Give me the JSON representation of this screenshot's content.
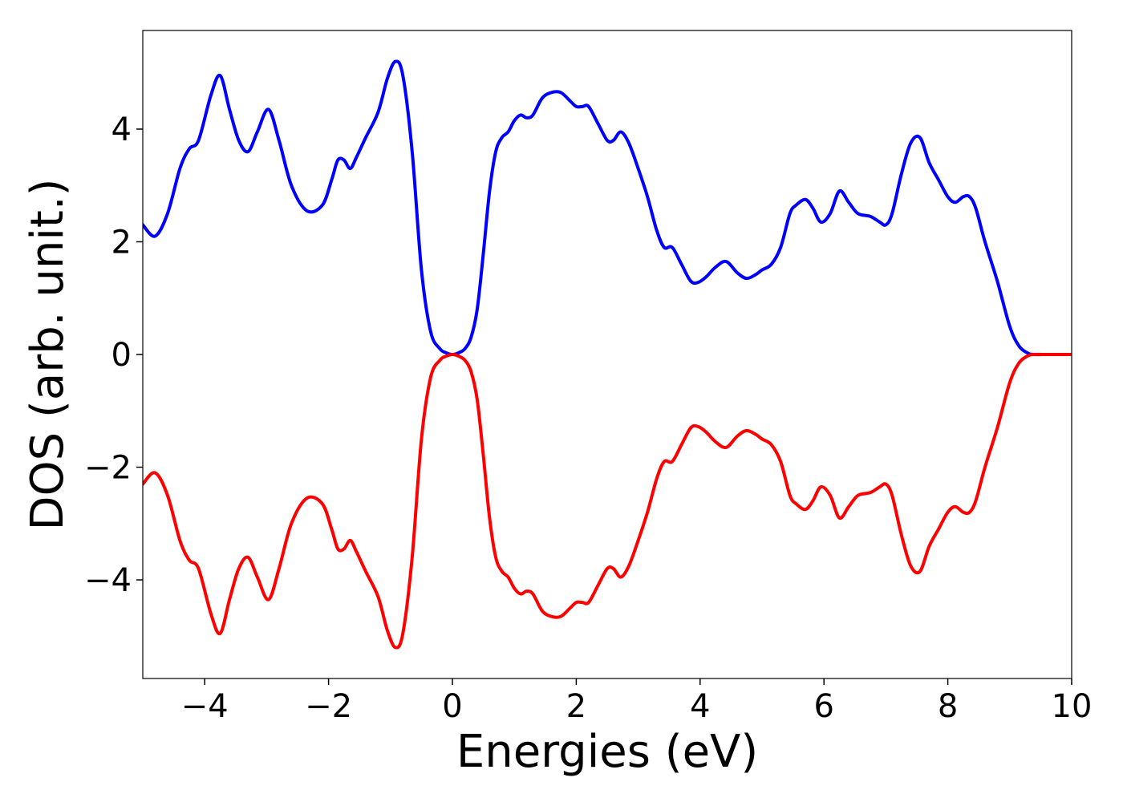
{
  "chart_data": {
    "type": "line",
    "title": "",
    "xlabel": "Energies (eV)",
    "ylabel": "DOS (arb. unit.)",
    "xlim": [
      -5,
      10
    ],
    "ylim": [
      -5.75,
      5.75
    ],
    "xticks": [
      -4,
      -2,
      0,
      2,
      4,
      6,
      8,
      10
    ],
    "xtick_labels": [
      "−4",
      "−2",
      "0",
      "2",
      "4",
      "6",
      "8",
      "10"
    ],
    "yticks": [
      -4,
      -2,
      0,
      2,
      4
    ],
    "ytick_labels": [
      "−4",
      "−2",
      "0",
      "2",
      "4"
    ],
    "grid": false,
    "legend": "none",
    "series": [
      {
        "color": "#0000ff",
        "x": [
          -5,
          -4.8,
          -4.6,
          -4.4,
          -4.25,
          -4.1,
          -3.9,
          -3.75,
          -3.6,
          -3.45,
          -3.3,
          -3.15,
          -2.97,
          -2.8,
          -2.6,
          -2.35,
          -2.1,
          -1.95,
          -1.85,
          -1.75,
          -1.65,
          -1.55,
          -1.4,
          -1.2,
          -1.05,
          -0.92,
          -0.8,
          -0.65,
          -0.5,
          -0.35,
          -0.2,
          -0.1,
          0,
          0.1,
          0.2,
          0.3,
          0.4,
          0.5,
          0.6,
          0.7,
          0.8,
          0.9,
          1.0,
          1.1,
          1.2,
          1.3,
          1.45,
          1.6,
          1.75,
          1.9,
          2.0,
          2.1,
          2.2,
          2.35,
          2.5,
          2.6,
          2.72,
          2.85,
          3.0,
          3.15,
          3.3,
          3.42,
          3.55,
          3.7,
          3.85,
          3.97,
          4.1,
          4.25,
          4.42,
          4.6,
          4.75,
          4.9,
          5.0,
          5.15,
          5.3,
          5.45,
          5.55,
          5.7,
          5.82,
          5.95,
          6.1,
          6.25,
          6.4,
          6.55,
          6.75,
          6.9,
          7.0,
          7.1,
          7.25,
          7.4,
          7.55,
          7.7,
          7.85,
          8.0,
          8.12,
          8.25,
          8.35,
          8.45,
          8.6,
          8.8,
          9.0,
          9.15,
          9.3,
          9.4,
          9.6,
          9.8,
          10
        ],
        "y": [
          2.3,
          2.1,
          2.5,
          3.3,
          3.65,
          3.8,
          4.6,
          4.95,
          4.35,
          3.8,
          3.6,
          3.95,
          4.35,
          3.8,
          3.0,
          2.55,
          2.65,
          3.1,
          3.45,
          3.45,
          3.3,
          3.5,
          3.85,
          4.3,
          4.9,
          5.2,
          4.95,
          3.6,
          1.5,
          0.4,
          0.1,
          0.03,
          0.0,
          0.03,
          0.1,
          0.3,
          0.8,
          1.8,
          2.9,
          3.6,
          3.85,
          3.95,
          4.15,
          4.25,
          4.2,
          4.25,
          4.55,
          4.65,
          4.65,
          4.5,
          4.4,
          4.4,
          4.4,
          4.1,
          3.8,
          3.8,
          3.95,
          3.75,
          3.3,
          2.8,
          2.2,
          1.9,
          1.9,
          1.6,
          1.3,
          1.28,
          1.38,
          1.55,
          1.65,
          1.45,
          1.35,
          1.42,
          1.5,
          1.6,
          1.9,
          2.5,
          2.65,
          2.75,
          2.6,
          2.35,
          2.5,
          2.9,
          2.7,
          2.5,
          2.45,
          2.35,
          2.3,
          2.5,
          3.2,
          3.75,
          3.85,
          3.4,
          3.1,
          2.8,
          2.7,
          2.8,
          2.8,
          2.6,
          2.0,
          1.3,
          0.5,
          0.15,
          0.02,
          0.0,
          0.0,
          0.0,
          0.0
        ]
      },
      {
        "color": "#ff0000",
        "x": [
          -5,
          -4.8,
          -4.6,
          -4.4,
          -4.25,
          -4.1,
          -3.9,
          -3.75,
          -3.6,
          -3.45,
          -3.3,
          -3.15,
          -2.97,
          -2.8,
          -2.6,
          -2.35,
          -2.1,
          -1.95,
          -1.85,
          -1.75,
          -1.65,
          -1.55,
          -1.4,
          -1.2,
          -1.05,
          -0.92,
          -0.8,
          -0.65,
          -0.5,
          -0.35,
          -0.2,
          -0.1,
          0,
          0.1,
          0.2,
          0.3,
          0.4,
          0.5,
          0.6,
          0.7,
          0.8,
          0.9,
          1.0,
          1.1,
          1.2,
          1.3,
          1.45,
          1.6,
          1.75,
          1.9,
          2.0,
          2.1,
          2.2,
          2.35,
          2.5,
          2.6,
          2.72,
          2.85,
          3.0,
          3.15,
          3.3,
          3.42,
          3.55,
          3.7,
          3.85,
          3.97,
          4.1,
          4.25,
          4.42,
          4.6,
          4.75,
          4.9,
          5.0,
          5.15,
          5.3,
          5.45,
          5.55,
          5.7,
          5.82,
          5.95,
          6.1,
          6.25,
          6.4,
          6.55,
          6.75,
          6.9,
          7.0,
          7.1,
          7.25,
          7.4,
          7.55,
          7.7,
          7.85,
          8.0,
          8.12,
          8.25,
          8.35,
          8.45,
          8.6,
          8.8,
          9.0,
          9.15,
          9.3,
          9.4,
          9.6,
          9.8,
          10
        ],
        "y": [
          -2.3,
          -2.1,
          -2.5,
          -3.3,
          -3.65,
          -3.8,
          -4.6,
          -4.95,
          -4.35,
          -3.8,
          -3.6,
          -3.95,
          -4.35,
          -3.8,
          -3.0,
          -2.55,
          -2.65,
          -3.1,
          -3.45,
          -3.45,
          -3.3,
          -3.5,
          -3.85,
          -4.3,
          -4.9,
          -5.2,
          -4.95,
          -3.6,
          -1.5,
          -0.4,
          -0.1,
          -0.03,
          0.0,
          -0.03,
          -0.1,
          -0.3,
          -0.8,
          -1.8,
          -2.9,
          -3.6,
          -3.85,
          -3.95,
          -4.15,
          -4.25,
          -4.2,
          -4.25,
          -4.55,
          -4.65,
          -4.65,
          -4.5,
          -4.4,
          -4.4,
          -4.4,
          -4.1,
          -3.8,
          -3.8,
          -3.95,
          -3.75,
          -3.3,
          -2.8,
          -2.2,
          -1.9,
          -1.9,
          -1.6,
          -1.3,
          -1.28,
          -1.38,
          -1.55,
          -1.65,
          -1.45,
          -1.35,
          -1.42,
          -1.5,
          -1.6,
          -1.9,
          -2.5,
          -2.65,
          -2.75,
          -2.6,
          -2.35,
          -2.5,
          -2.9,
          -2.7,
          -2.5,
          -2.45,
          -2.35,
          -2.3,
          -2.5,
          -3.2,
          -3.75,
          -3.85,
          -3.4,
          -3.1,
          -2.8,
          -2.7,
          -2.8,
          -2.8,
          -2.6,
          -2.0,
          -1.3,
          -0.5,
          -0.15,
          -0.02,
          0.0,
          0.0,
          0.0,
          0.0
        ]
      }
    ]
  }
}
